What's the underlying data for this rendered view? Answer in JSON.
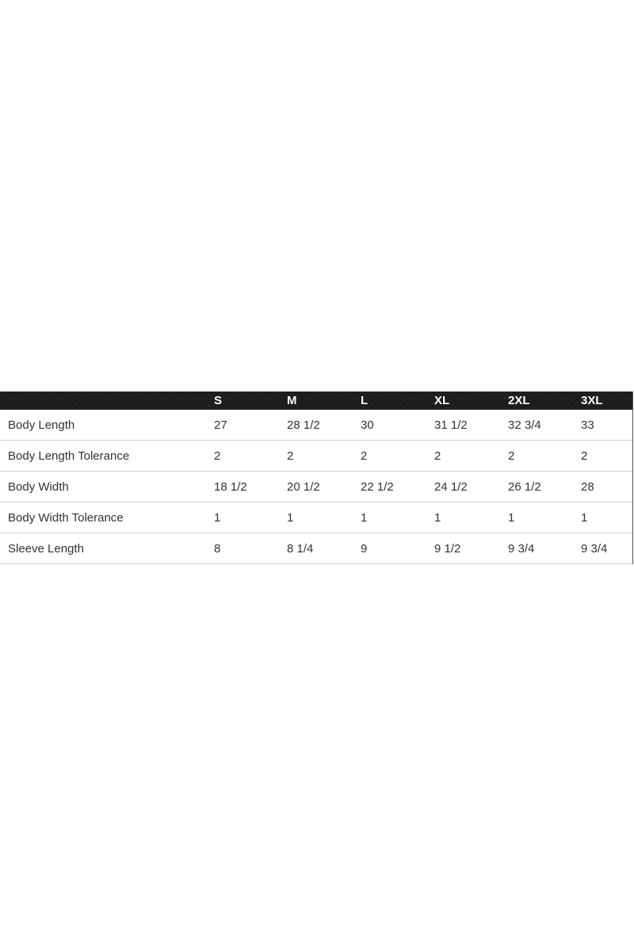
{
  "table": {
    "headers": [
      "",
      "S",
      "M",
      "L",
      "XL",
      "2XL",
      "3XL"
    ],
    "rows": [
      [
        "Body Length",
        "27",
        "28 1/2",
        "30",
        "31 1/2",
        "32 3/4",
        "33"
      ],
      [
        "Body Length Tolerance",
        "2",
        "2",
        "2",
        "2",
        "2",
        "2"
      ],
      [
        "Body Width",
        "18 1/2",
        "20 1/2",
        "22 1/2",
        "24 1/2",
        "26 1/2",
        "28"
      ],
      [
        "Body Width Tolerance",
        "1",
        "1",
        "1",
        "1",
        "1",
        "1"
      ],
      [
        "Sleeve Length",
        "8",
        "8 1/4",
        "9",
        "9 1/2",
        "9 3/4",
        "9 3/4"
      ]
    ]
  }
}
